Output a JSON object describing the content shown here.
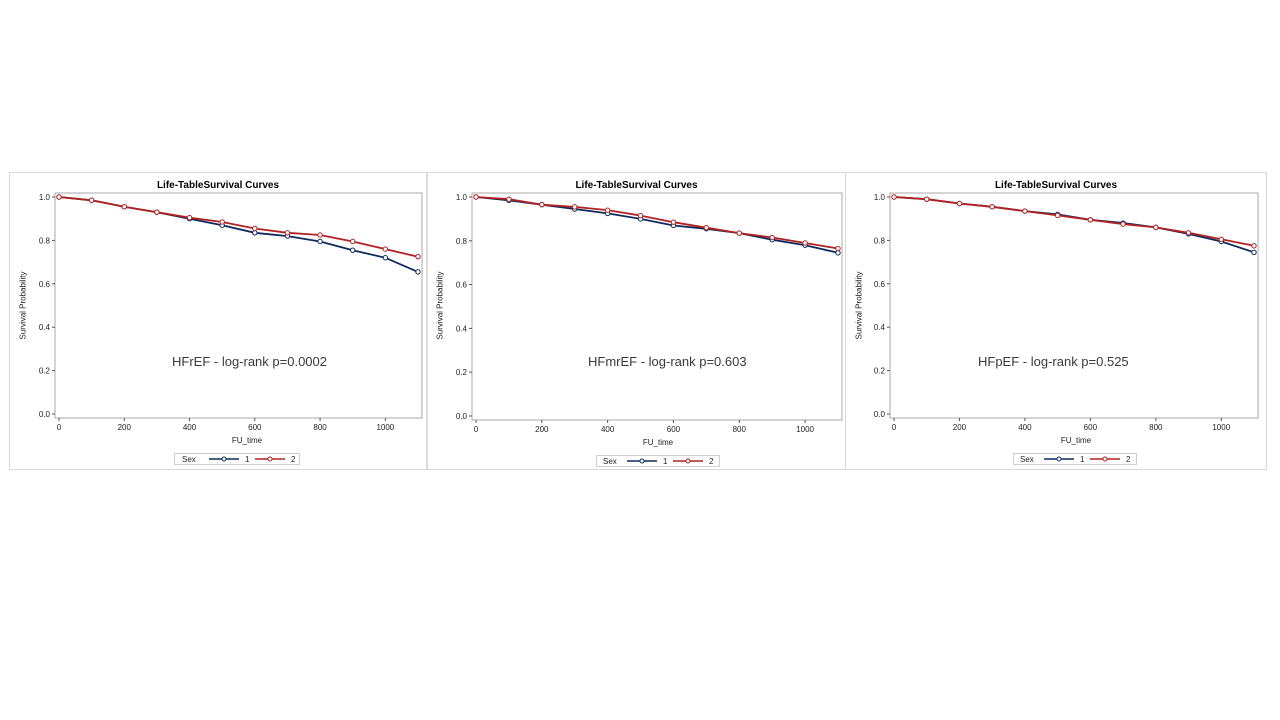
{
  "chart_data": [
    {
      "type": "line",
      "title": "Life-TableSurvival Curves",
      "xlabel": "FU_time",
      "ylabel": "Survival Probability",
      "xlim": [
        0,
        1100
      ],
      "ylim": [
        0,
        1.0
      ],
      "xticks": [
        "0",
        "200",
        "400",
        "600",
        "800",
        "1000"
      ],
      "yticks": [
        "0.0",
        "0.2",
        "0.4",
        "0.6",
        "0.8",
        "1.0"
      ],
      "annotation": "HFrEF - log-rank p=0.0002",
      "legend_title": "Sex",
      "legend_position": "bottom",
      "x": [
        0,
        100,
        200,
        300,
        400,
        500,
        600,
        700,
        800,
        900,
        1000,
        1100
      ],
      "series": [
        {
          "name": "1",
          "color": "#0d2b5e",
          "values": [
            1.0,
            0.985,
            0.955,
            0.93,
            0.9,
            0.87,
            0.835,
            0.82,
            0.795,
            0.755,
            0.72,
            0.655
          ]
        },
        {
          "name": "2",
          "color": "#b22222",
          "values": [
            1.0,
            0.985,
            0.955,
            0.93,
            0.905,
            0.885,
            0.855,
            0.835,
            0.825,
            0.795,
            0.76,
            0.725
          ]
        }
      ]
    },
    {
      "type": "line",
      "title": "Life-TableSurvival Curves",
      "xlabel": "FU_time",
      "ylabel": "Survival Probability",
      "xlim": [
        0,
        1100
      ],
      "ylim": [
        0,
        1.0
      ],
      "xticks": [
        "0",
        "200",
        "400",
        "600",
        "800",
        "1000"
      ],
      "yticks": [
        "0.0",
        "0.2",
        "0.4",
        "0.6",
        "0.8",
        "1.0"
      ],
      "annotation": "HFmrEF - log-rank p=0.603",
      "legend_title": "Sex",
      "legend_position": "bottom",
      "x": [
        0,
        100,
        200,
        300,
        400,
        500,
        600,
        700,
        800,
        900,
        1000,
        1100
      ],
      "series": [
        {
          "name": "1",
          "color": "#0d2b5e",
          "values": [
            1.0,
            0.985,
            0.965,
            0.945,
            0.925,
            0.9,
            0.87,
            0.855,
            0.835,
            0.805,
            0.78,
            0.745
          ]
        },
        {
          "name": "2",
          "color": "#b22222",
          "values": [
            1.0,
            0.99,
            0.965,
            0.955,
            0.94,
            0.915,
            0.885,
            0.86,
            0.835,
            0.815,
            0.79,
            0.765
          ]
        }
      ]
    },
    {
      "type": "line",
      "title": "Life-TableSurvival Curves",
      "xlabel": "FU_time",
      "ylabel": "Survival Probability",
      "xlim": [
        0,
        1100
      ],
      "ylim": [
        0,
        1.0
      ],
      "xticks": [
        "0",
        "200",
        "400",
        "600",
        "800",
        "1000"
      ],
      "yticks": [
        "0.0",
        "0.2",
        "0.4",
        "0.6",
        "0.8",
        "1.0"
      ],
      "annotation": "HFpEF - log-rank p=0.525",
      "legend_title": "Sex",
      "legend_position": "bottom",
      "x": [
        0,
        100,
        200,
        300,
        400,
        500,
        600,
        700,
        800,
        900,
        1000,
        1100
      ],
      "series": [
        {
          "name": "1",
          "color": "#0d2b5e",
          "values": [
            1.0,
            0.99,
            0.97,
            0.955,
            0.935,
            0.92,
            0.895,
            0.88,
            0.86,
            0.83,
            0.795,
            0.745
          ]
        },
        {
          "name": "2",
          "color": "#b22222",
          "values": [
            1.0,
            0.99,
            0.97,
            0.955,
            0.935,
            0.915,
            0.895,
            0.875,
            0.86,
            0.835,
            0.805,
            0.775
          ]
        }
      ]
    }
  ]
}
